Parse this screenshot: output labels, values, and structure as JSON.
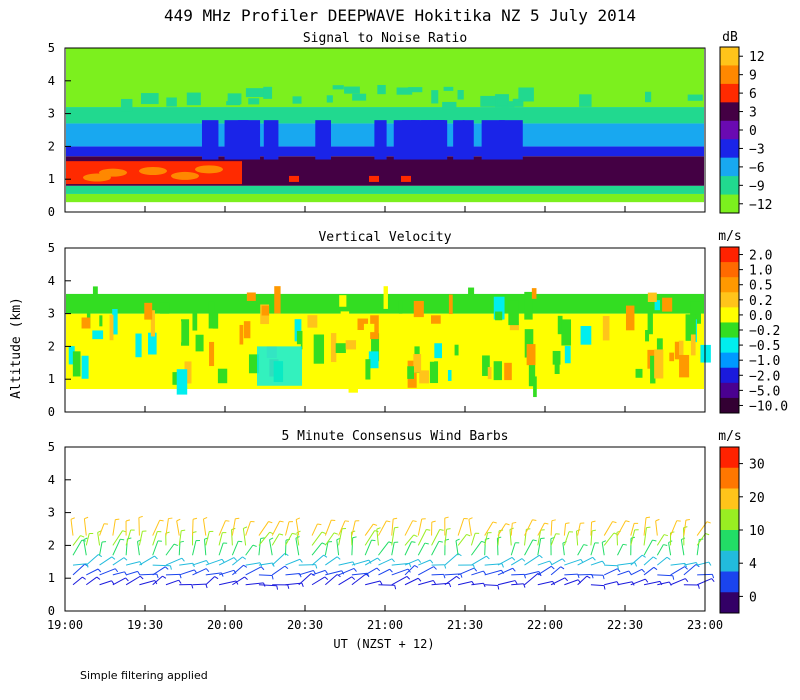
{
  "chart_data": {
    "type": "heatmap",
    "title": "449 MHz Profiler DEEPWAVE Hokitika NZ  5 July 2014",
    "ylabel": "Altitude (km)",
    "xlabel": "UT  (NZST + 12)",
    "footnote": "Simple filtering applied",
    "x_ticks": [
      "19:00",
      "19:30",
      "20:00",
      "20:30",
      "21:00",
      "21:30",
      "22:00",
      "22:30",
      "23:00"
    ],
    "xlim_hours": [
      19,
      23
    ],
    "y_ticks": [
      "0",
      "1",
      "2",
      "3",
      "4",
      "5"
    ],
    "ylim_km": [
      0,
      5
    ],
    "panels": [
      {
        "title": "Signal to Noise Ratio",
        "unit": "dB",
        "colorbar_labels": [
          "12",
          "9",
          "6",
          "3",
          "0",
          "−3",
          "−6",
          "−9",
          "−12"
        ],
        "colorbar_colors": [
          "#ffc41a",
          "#ff8800",
          "#ff2a00",
          "#440044",
          "#6a0ab2",
          "#1a24e8",
          "#18a8f0",
          "#21d98f",
          "#7cf01e"
        ],
        "layers": [
          {
            "from_km": 0.3,
            "to_km": 0.55,
            "color": "#7cf01e"
          },
          {
            "from_km": 0.55,
            "to_km": 0.8,
            "color": "#21d98f"
          },
          {
            "from_km": 0.8,
            "to_km": 1.7,
            "color": "#440044"
          },
          {
            "from_km": 1.7,
            "to_km": 2.0,
            "color": "#1a24e8"
          },
          {
            "from_km": 2.0,
            "to_km": 2.7,
            "color": "#18a8f0"
          },
          {
            "from_km": 2.7,
            "to_km": 3.2,
            "color": "#21d98f"
          },
          {
            "from_km": 3.2,
            "to_km": 5.0,
            "color": "#7cf01e"
          }
        ]
      },
      {
        "title": "Vertical Velocity",
        "unit": "m/s",
        "colorbar_labels": [
          "2.0",
          "1.0",
          "0.5",
          "0.2",
          "0.0",
          "−0.2",
          "−0.5",
          "−1.0",
          "−2.0",
          "−5.0",
          "−10.0"
        ],
        "colorbar_colors": [
          "#ff2200",
          "#ff6a00",
          "#ff9900",
          "#ffc41a",
          "#ffff00",
          "#33dd22",
          "#00eeee",
          "#0099ff",
          "#1a1add",
          "#4a0090",
          "#330033"
        ],
        "layers": [
          {
            "from_km": 0.7,
            "to_km": 3.0,
            "color": "#ffff00"
          },
          {
            "from_km": 3.0,
            "to_km": 3.6,
            "color": "#33dd22"
          }
        ]
      },
      {
        "title": "5 Minute Consensus Wind Barbs",
        "unit": "m/s",
        "colorbar_labels": [
          "30",
          "20",
          "10",
          "4",
          "0"
        ],
        "colorbar_colors": [
          "#ff2200",
          "#ff7700",
          "#ffc41a",
          "#99ee22",
          "#22dd66",
          "#22bbdd",
          "#1a44ee",
          "#330066"
        ],
        "barb_rows_km": [
          0.8,
          1.1,
          1.4,
          1.7,
          2.0,
          2.3
        ]
      }
    ]
  }
}
